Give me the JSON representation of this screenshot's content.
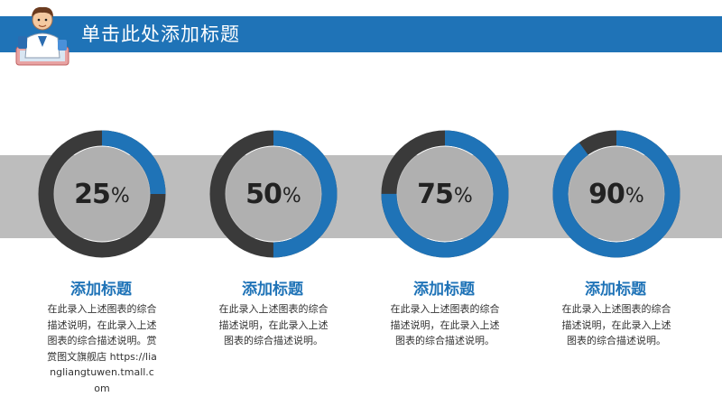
{
  "slide": {
    "title": "单击此处添加标题",
    "colors": {
      "accent": "#1f73b7",
      "dark": "#3a3a3a",
      "band": "#bdbdbd",
      "center": "#b0b0b0"
    }
  },
  "items": [
    {
      "percent": 25,
      "number": "25",
      "symbol": "%",
      "heading": "添加标题",
      "desc": "在此录入上述图表的综合描述说明，在此录入上述图表的综合描述说明。赏赏图文旗舰店 https://liangliangtuwen.tmall.com"
    },
    {
      "percent": 50,
      "number": "50",
      "symbol": "%",
      "heading": "添加标题",
      "desc": "在此录入上述图表的综合描述说明，在此录入上述图表的综合描述说明。"
    },
    {
      "percent": 75,
      "number": "75",
      "symbol": "%",
      "heading": "添加标题",
      "desc": "在此录入上述图表的综合描述说明，在此录入上述图表的综合描述说明。"
    },
    {
      "percent": 90,
      "number": "90",
      "symbol": "%",
      "heading": "添加标题",
      "desc": "在此录入上述图表的综合描述说明，在此录入上述图表的综合描述说明。"
    }
  ]
}
